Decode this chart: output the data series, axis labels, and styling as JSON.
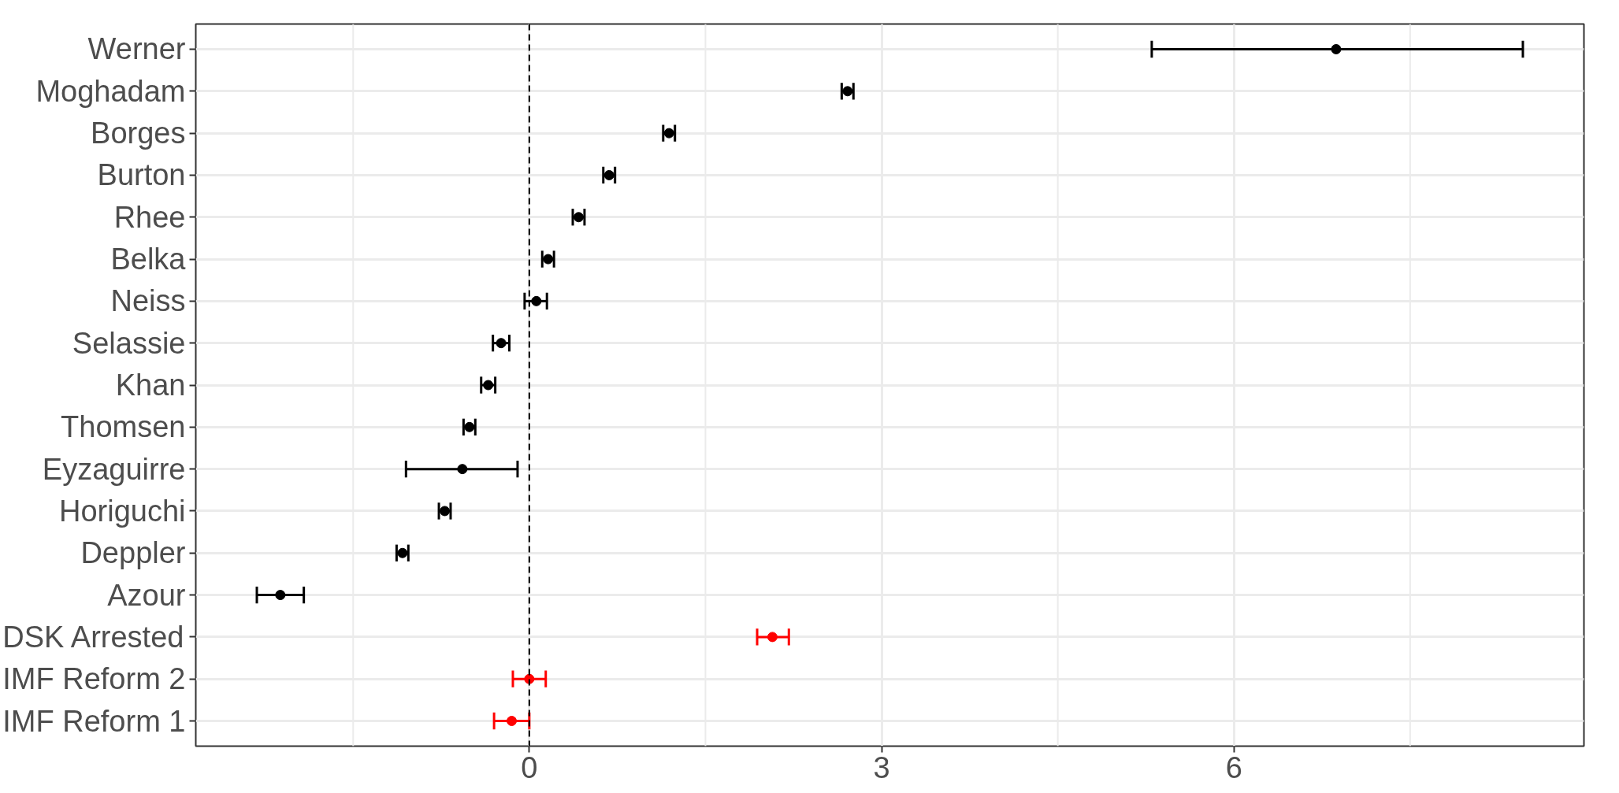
{
  "chart_data": {
    "type": "scatter",
    "orientation": "horizontal",
    "categories": [
      "Werner",
      "Moghadam",
      "Borges",
      "Burton",
      "Rhee",
      "Belka",
      "Neiss",
      "Selassie",
      "Khan",
      "Thomsen",
      "Eyzaguirre",
      "Horiguchi",
      "Deppler",
      "Azour",
      "DSK Arrested",
      "IMF Reform 2",
      "IMF Reform 1"
    ],
    "series": [
      {
        "color": "#000000",
        "values": [
          6.87,
          2.71,
          1.19,
          0.68,
          0.42,
          0.16,
          0.06,
          -0.24,
          -0.35,
          -0.51,
          -0.57,
          -0.72,
          -1.08,
          -2.12,
          null,
          null,
          null
        ],
        "errors": [
          [
            5.3,
            8.46
          ],
          [
            2.66,
            2.76
          ],
          [
            1.14,
            1.24
          ],
          [
            0.63,
            0.73
          ],
          [
            0.37,
            0.47
          ],
          [
            0.11,
            0.21
          ],
          [
            -0.04,
            0.15
          ],
          [
            -0.31,
            -0.17
          ],
          [
            -0.41,
            -0.29
          ],
          [
            -0.56,
            -0.46
          ],
          [
            -1.05,
            -0.1
          ],
          [
            -0.77,
            -0.67
          ],
          [
            -1.13,
            -1.03
          ],
          [
            -2.32,
            -1.92
          ],
          null,
          null,
          null
        ]
      },
      {
        "color": "#ff0000",
        "values": [
          null,
          null,
          null,
          null,
          null,
          null,
          null,
          null,
          null,
          null,
          null,
          null,
          null,
          null,
          2.07,
          0.0,
          -0.15
        ],
        "errors": [
          null,
          null,
          null,
          null,
          null,
          null,
          null,
          null,
          null,
          null,
          null,
          null,
          null,
          null,
          [
            1.94,
            2.21
          ],
          [
            -0.14,
            0.14
          ],
          [
            -0.3,
            0.0
          ]
        ]
      }
    ],
    "xlim": [
      -2.84,
      8.98
    ],
    "xticks": [
      0,
      3,
      6
    ],
    "grid": true,
    "marker": "circle",
    "ref_lines": [
      {
        "axis": "x",
        "value": 0,
        "line_style": "dashed",
        "color": "#000000"
      }
    ]
  }
}
